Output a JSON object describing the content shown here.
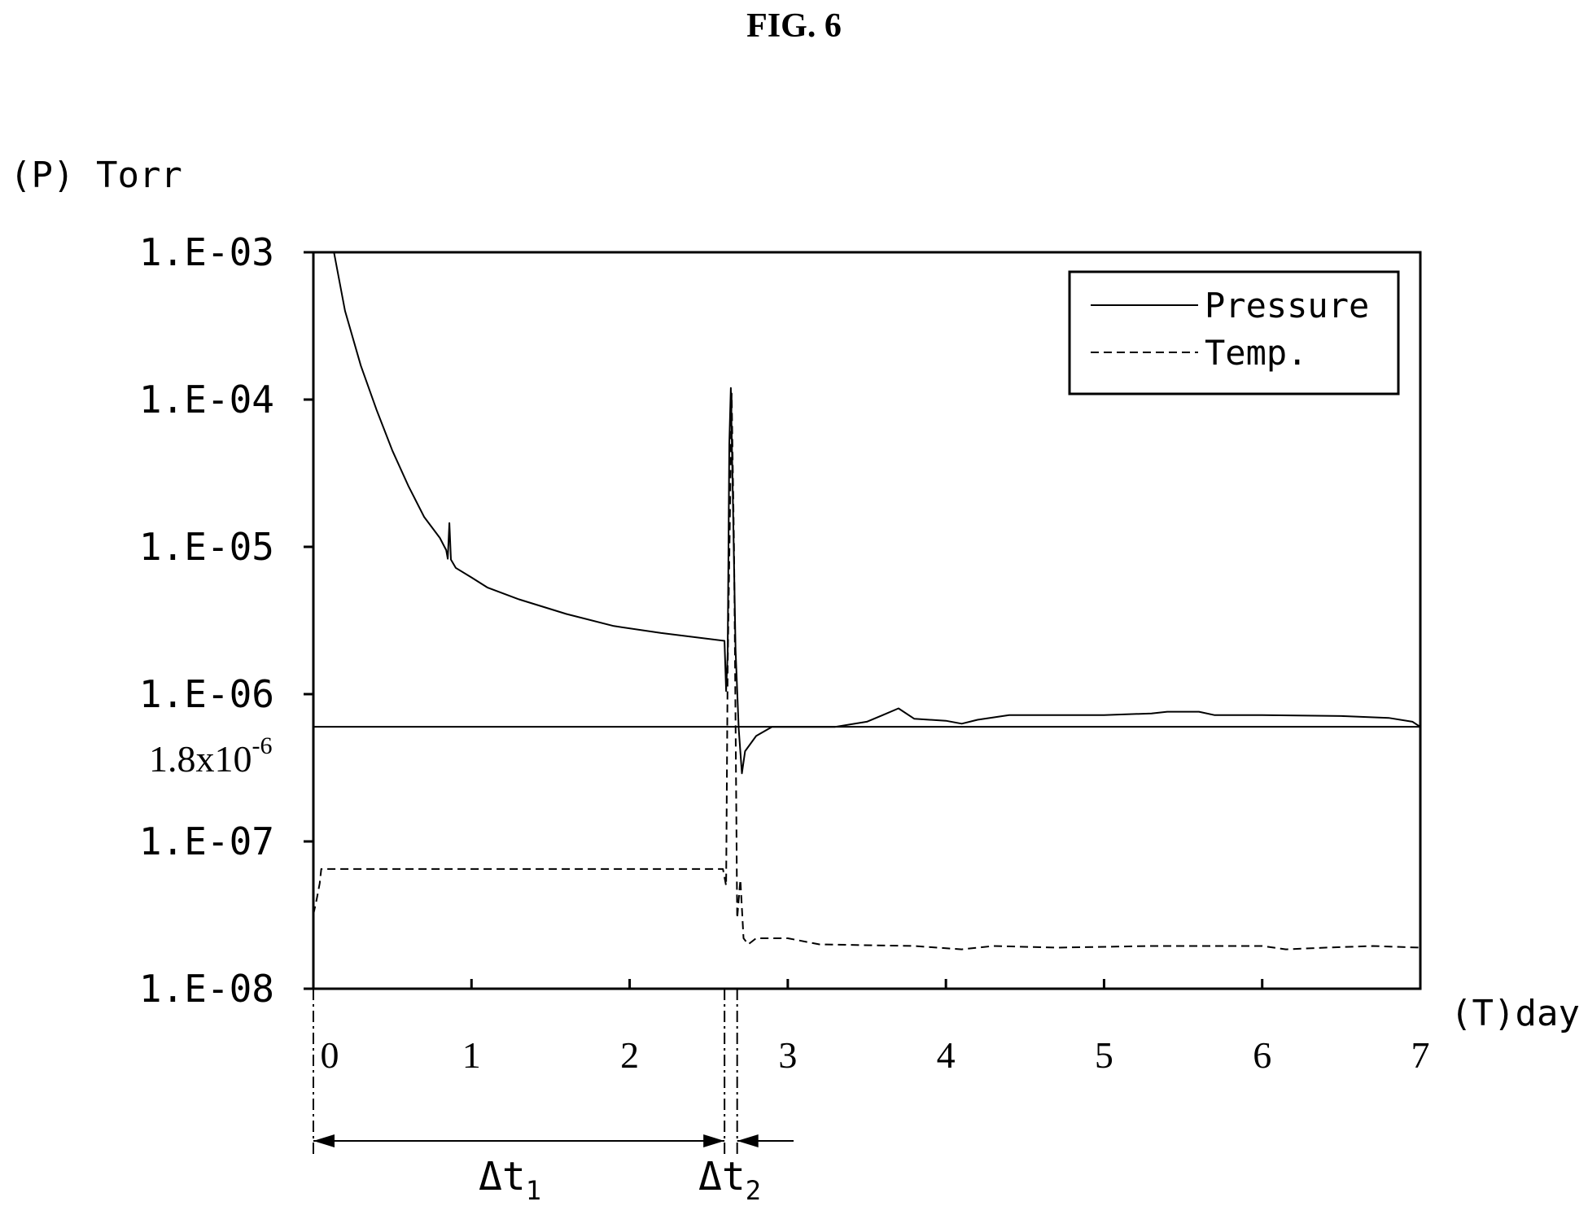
{
  "figure_title": "FIG. 6",
  "chart_data": {
    "type": "line",
    "title": "",
    "ylabel": "(P) Torr",
    "xlabel": "(T)day",
    "y_scale": "log",
    "ylim": [
      1e-08,
      0.001
    ],
    "xlim": [
      0,
      7
    ],
    "y_ticks": [
      {
        "value": 0.001,
        "label": "1.E-03"
      },
      {
        "value": 0.0001,
        "label": "1.E-04"
      },
      {
        "value": 1e-05,
        "label": "1.E-05"
      },
      {
        "value": 1e-06,
        "label": "1.E-06"
      },
      {
        "value": 1e-07,
        "label": "1.E-07"
      },
      {
        "value": 1e-08,
        "label": "1.E-08"
      }
    ],
    "x_ticks": [
      0,
      1,
      2,
      3,
      4,
      5,
      6,
      7
    ],
    "reference_line": {
      "value": 6e-07,
      "label_base": "1.8x10",
      "label_exp": "-6"
    },
    "legend": {
      "position": "top-right",
      "items": [
        "Pressure",
        "Temp."
      ]
    },
    "series": [
      {
        "name": "Pressure",
        "style": "solid",
        "points": [
          [
            0.13,
            0.001
          ],
          [
            0.2,
            0.0004
          ],
          [
            0.3,
            0.00017
          ],
          [
            0.4,
            8.5e-05
          ],
          [
            0.5,
            4.5e-05
          ],
          [
            0.6,
            2.6e-05
          ],
          [
            0.7,
            1.6e-05
          ],
          [
            0.8,
            1.15e-05
          ],
          [
            0.84,
            9.5e-06
          ],
          [
            0.85,
            8.3e-06
          ],
          [
            0.86,
            1.45e-05
          ],
          [
            0.87,
            8.2e-06
          ],
          [
            0.9,
            7.2e-06
          ],
          [
            1.0,
            6.2e-06
          ],
          [
            1.1,
            5.3e-06
          ],
          [
            1.3,
            4.4e-06
          ],
          [
            1.6,
            3.5e-06
          ],
          [
            1.9,
            2.9e-06
          ],
          [
            2.2,
            2.6e-06
          ],
          [
            2.6,
            2.3e-06
          ],
          [
            2.61,
            1.05e-06
          ],
          [
            2.62,
            1.9e-06
          ],
          [
            2.63,
            5e-05
          ],
          [
            2.64,
            0.00012
          ],
          [
            2.65,
            3e-05
          ],
          [
            2.67,
            2e-06
          ],
          [
            2.69,
            5.8e-07
          ],
          [
            2.71,
            2.9e-07
          ],
          [
            2.73,
            4.1e-07
          ],
          [
            2.8,
            5.2e-07
          ],
          [
            2.9,
            6e-07
          ],
          [
            3.3,
            6e-07
          ],
          [
            3.5,
            6.5e-07
          ],
          [
            3.6,
            7.2e-07
          ],
          [
            3.7,
            8e-07
          ],
          [
            3.8,
            6.8e-07
          ],
          [
            4.0,
            6.6e-07
          ],
          [
            4.1,
            6.3e-07
          ],
          [
            4.2,
            6.7e-07
          ],
          [
            4.4,
            7.2e-07
          ],
          [
            5.0,
            7.2e-07
          ],
          [
            5.3,
            7.4e-07
          ],
          [
            5.4,
            7.6e-07
          ],
          [
            5.6,
            7.6e-07
          ],
          [
            5.7,
            7.2e-07
          ],
          [
            6.0,
            7.2e-07
          ],
          [
            6.5,
            7.1e-07
          ],
          [
            6.8,
            6.9e-07
          ],
          [
            6.95,
            6.5e-07
          ],
          [
            7.0,
            6e-07
          ]
        ]
      },
      {
        "name": "Temp.",
        "style": "dashed",
        "points": [
          [
            0.0,
            3.2e-08
          ],
          [
            0.02,
            4e-08
          ],
          [
            0.04,
            5.2e-08
          ],
          [
            0.05,
            6.5e-08
          ],
          [
            1.0,
            6.5e-08
          ],
          [
            2.0,
            6.5e-08
          ],
          [
            2.59,
            6.5e-08
          ],
          [
            2.61,
            5e-08
          ],
          [
            2.62,
            1.5e-06
          ],
          [
            2.635,
            1.8e-05
          ],
          [
            2.645,
            0.00011
          ],
          [
            2.66,
            1e-05
          ],
          [
            2.67,
            6.5e-07
          ],
          [
            2.68,
            3e-08
          ],
          [
            2.7,
            5.5e-08
          ],
          [
            2.72,
            2.2e-08
          ],
          [
            2.75,
            2e-08
          ],
          [
            2.8,
            2.2e-08
          ],
          [
            3.0,
            2.2e-08
          ],
          [
            3.2,
            2e-08
          ],
          [
            3.8,
            1.95e-08
          ],
          [
            4.1,
            1.85e-08
          ],
          [
            4.3,
            1.95e-08
          ],
          [
            4.7,
            1.9e-08
          ],
          [
            5.3,
            1.95e-08
          ],
          [
            6.0,
            1.95e-08
          ],
          [
            6.15,
            1.85e-08
          ],
          [
            6.4,
            1.9e-08
          ],
          [
            6.7,
            1.95e-08
          ],
          [
            7.0,
            1.9e-08
          ]
        ]
      }
    ],
    "intervals": [
      {
        "label_base": "Δt",
        "label_sub": "1",
        "start": 0,
        "end": 2.6
      },
      {
        "label_base": "Δt",
        "label_sub": "2",
        "start": 2.6,
        "end": 2.68
      }
    ]
  }
}
